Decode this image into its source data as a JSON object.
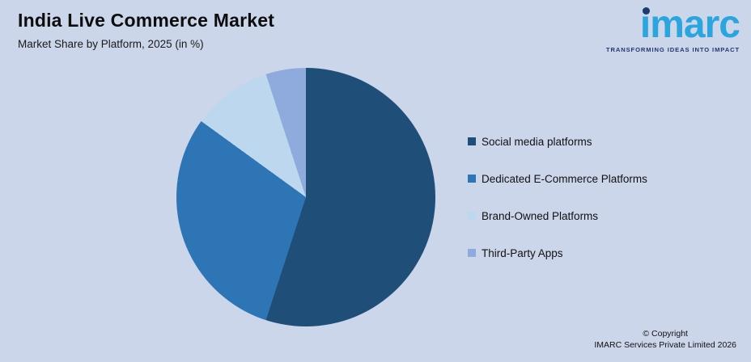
{
  "page": {
    "background": "#ccd6ea"
  },
  "header": {
    "title": "India Live Commerce Market",
    "subtitle": "Market Share by Platform, 2025 (in %)"
  },
  "logo": {
    "wordmark": "imarc",
    "tagline": "TRANSFORMING IDEAS INTO IMPACT",
    "wordmark_color": "#2aa5dd",
    "tagline_color": "#1e3a6e"
  },
  "chart_data": {
    "type": "pie",
    "title": "India Live Commerce Market",
    "subtitle": "Market Share by Platform, 2025 (in %)",
    "unit": "%",
    "start_angle_deg": 0,
    "direction": "clockwise",
    "legend_position": "right",
    "slices": [
      {
        "label": "Social media platforms",
        "value": 55,
        "color": "#1f4e79"
      },
      {
        "label": "Dedicated E-Commerce Platforms",
        "value": 30,
        "color": "#2e75b6"
      },
      {
        "label": "Brand-Owned Platforms",
        "value": 10,
        "color": "#bdd7ee"
      },
      {
        "label": "Third-Party Apps",
        "value": 5,
        "color": "#8faadc"
      }
    ]
  },
  "footer": {
    "line1": "© Copyright",
    "line2": "IMARC Services Private Limited 2026"
  }
}
